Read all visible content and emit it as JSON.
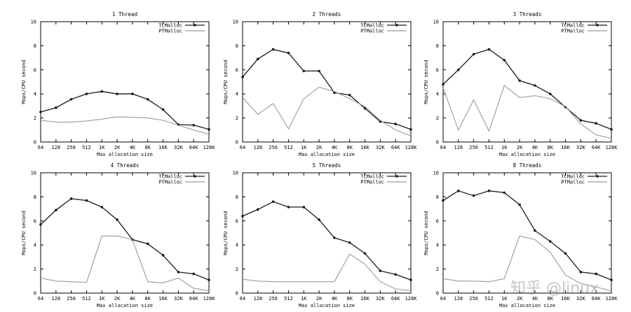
{
  "figure": {
    "watermark": "知乎 @linux",
    "colors": {
      "tcmalloc": "#1a1a1a",
      "ptmalloc": "#9a9a9a",
      "axis": "#000000"
    }
  },
  "chart_data": [
    {
      "type": "line",
      "title": "1 Thread",
      "xlabel": "Max allocation size",
      "ylabel": "Mops/CPU second",
      "categories": [
        "64",
        "128",
        "256",
        "512",
        "1K",
        "2K",
        "4K",
        "8K",
        "16K",
        "32K",
        "64K",
        "128K"
      ],
      "ylim": [
        0,
        10
      ],
      "yticks": [
        0,
        2,
        4,
        6,
        8,
        10
      ],
      "legend": "top-right",
      "series": [
        {
          "name": "TCMalloc",
          "values": [
            2.5,
            2.85,
            3.55,
            4.0,
            4.2,
            4.0,
            4.0,
            3.55,
            2.7,
            1.45,
            1.4,
            1.05
          ]
        },
        {
          "name": "PTMalloc",
          "values": [
            1.8,
            1.65,
            1.65,
            1.75,
            1.9,
            2.1,
            2.05,
            2.0,
            1.8,
            1.4,
            1.0,
            0.65
          ]
        }
      ]
    },
    {
      "type": "line",
      "title": "2 Threads",
      "xlabel": "Max allocation size",
      "ylabel": "Mops/CPU second",
      "categories": [
        "64",
        "128",
        "256",
        "512",
        "1K",
        "2K",
        "4K",
        "8K",
        "16K",
        "32K",
        "64K",
        "128K"
      ],
      "ylim": [
        0,
        10
      ],
      "yticks": [
        0,
        2,
        4,
        6,
        8,
        10
      ],
      "legend": "top-right",
      "series": [
        {
          "name": "TCMalloc",
          "values": [
            5.4,
            6.9,
            7.7,
            7.4,
            5.9,
            5.9,
            4.1,
            3.9,
            2.8,
            1.7,
            1.5,
            1.05
          ]
        },
        {
          "name": "PTMalloc",
          "values": [
            3.7,
            2.3,
            3.2,
            1.1,
            3.6,
            4.55,
            4.2,
            3.6,
            2.95,
            1.8,
            1.0,
            0.5
          ]
        }
      ]
    },
    {
      "type": "line",
      "title": "3 Threads",
      "xlabel": "Max allocation size",
      "ylabel": "Mops/CPU second",
      "categories": [
        "64",
        "128",
        "256",
        "512",
        "1K",
        "2K",
        "4K",
        "8K",
        "16K",
        "32K",
        "64K",
        "128K"
      ],
      "ylim": [
        0,
        10
      ],
      "yticks": [
        0,
        2,
        4,
        6,
        8,
        10
      ],
      "legend": "top-right",
      "series": [
        {
          "name": "TCMalloc",
          "values": [
            4.8,
            6.0,
            7.3,
            7.7,
            6.8,
            5.1,
            4.7,
            4.0,
            2.9,
            1.8,
            1.55,
            1.05
          ]
        },
        {
          "name": "PTMalloc",
          "values": [
            4.5,
            1.0,
            3.5,
            0.9,
            4.7,
            3.7,
            3.85,
            3.6,
            2.95,
            1.5,
            0.6,
            0.3
          ]
        }
      ]
    },
    {
      "type": "line",
      "title": "4 Threads",
      "xlabel": "Max allocation size",
      "ylabel": "Mops/CPU second",
      "categories": [
        "64",
        "128",
        "256",
        "512",
        "1K",
        "2K",
        "4K",
        "8K",
        "16K",
        "32K",
        "64K",
        "128K"
      ],
      "ylim": [
        0,
        10
      ],
      "yticks": [
        0,
        2,
        4,
        6,
        8,
        10
      ],
      "legend": "top-right",
      "series": [
        {
          "name": "TCMalloc",
          "values": [
            5.7,
            6.9,
            7.85,
            7.7,
            7.15,
            6.1,
            4.45,
            4.1,
            3.15,
            1.75,
            1.6,
            1.1
          ]
        },
        {
          "name": "PTMalloc",
          "values": [
            1.25,
            1.0,
            0.95,
            0.9,
            4.75,
            4.75,
            4.45,
            0.95,
            0.85,
            1.25,
            0.4,
            0.2
          ]
        }
      ]
    },
    {
      "type": "line",
      "title": "5 Threads",
      "xlabel": "Max allocation size",
      "ylabel": "Mops/CPU second",
      "categories": [
        "64",
        "128",
        "256",
        "512",
        "1K",
        "2K",
        "4K",
        "8K",
        "16K",
        "32K",
        "64K",
        "128K"
      ],
      "ylim": [
        0,
        10
      ],
      "yticks": [
        0,
        2,
        4,
        6,
        8,
        10
      ],
      "legend": "top-right",
      "series": [
        {
          "name": "TCMalloc",
          "values": [
            6.4,
            6.95,
            7.6,
            7.15,
            7.15,
            6.1,
            4.6,
            4.2,
            3.3,
            1.85,
            1.55,
            1.1
          ]
        },
        {
          "name": "PTMalloc",
          "values": [
            1.15,
            1.0,
            0.95,
            0.95,
            0.95,
            0.95,
            0.95,
            3.25,
            2.4,
            0.95,
            0.35,
            0.2
          ]
        }
      ]
    },
    {
      "type": "line",
      "title": "8 Threads",
      "xlabel": "Max allocation size",
      "ylabel": "Mops/CPU second",
      "categories": [
        "64",
        "128",
        "256",
        "512",
        "1K",
        "2K",
        "4K",
        "8K",
        "16K",
        "32K",
        "64K",
        "128K"
      ],
      "ylim": [
        0,
        10
      ],
      "yticks": [
        0,
        2,
        4,
        6,
        8,
        10
      ],
      "legend": "top-right",
      "series": [
        {
          "name": "TCMalloc",
          "values": [
            7.7,
            8.5,
            8.1,
            8.5,
            8.35,
            7.35,
            5.2,
            4.3,
            3.3,
            1.75,
            1.6,
            1.1
          ]
        },
        {
          "name": "PTMalloc",
          "values": [
            1.2,
            1.0,
            1.0,
            0.95,
            1.2,
            4.75,
            4.45,
            3.4,
            1.5,
            0.8,
            0.5,
            0.2
          ]
        }
      ]
    }
  ]
}
